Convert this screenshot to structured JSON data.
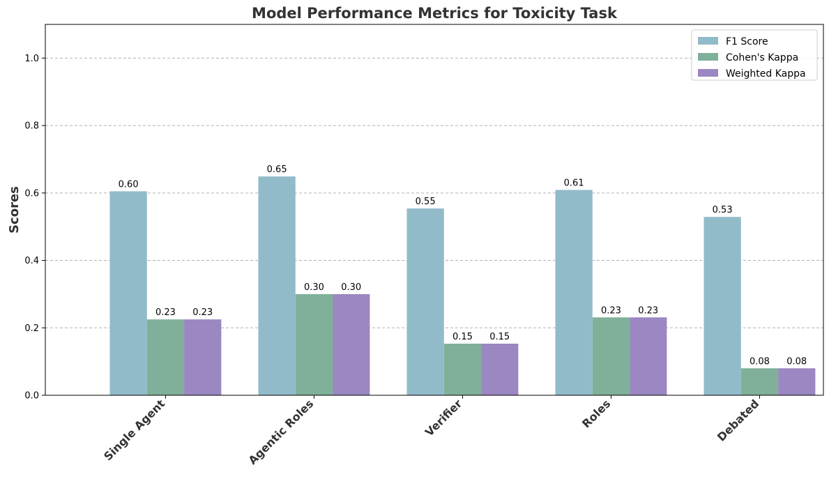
{
  "chart_data": {
    "type": "bar",
    "title": "Model Performance Metrics for Toxicity Task",
    "xlabel": "",
    "ylabel": "Scores",
    "ylim": [
      0,
      1.1
    ],
    "yticks": [
      0.0,
      0.2,
      0.4,
      0.6,
      0.8,
      1.0
    ],
    "ytick_labels": [
      "0.0",
      "0.2",
      "0.4",
      "0.6",
      "0.8",
      "1.0"
    ],
    "grid": true,
    "legend_position": "top-right",
    "categories": [
      "Single Agent",
      "Agentic Roles",
      "Verifier",
      "Roles",
      "Debated"
    ],
    "series": [
      {
        "name": "F1 Score",
        "color": "#92BBCA",
        "values": [
          0.605,
          0.649,
          0.554,
          0.609,
          0.529
        ],
        "labels": [
          "0.60",
          "0.65",
          "0.55",
          "0.61",
          "0.53"
        ]
      },
      {
        "name": "Cohen's Kappa",
        "color": "#80B09A",
        "values": [
          0.225,
          0.3,
          0.153,
          0.231,
          0.08
        ],
        "labels": [
          "0.23",
          "0.30",
          "0.15",
          "0.23",
          "0.08"
        ]
      },
      {
        "name": "Weighted Kappa",
        "color": "#9B87C1",
        "values": [
          0.225,
          0.3,
          0.153,
          0.231,
          0.08
        ],
        "labels": [
          "0.23",
          "0.30",
          "0.15",
          "0.23",
          "0.08"
        ]
      }
    ]
  }
}
